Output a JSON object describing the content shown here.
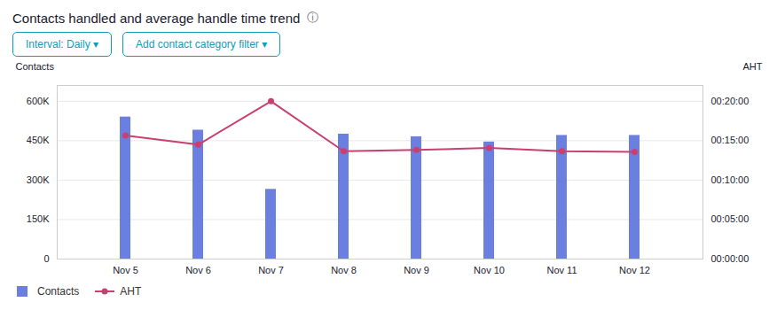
{
  "chart_data": {
    "type": "bar",
    "title": "Contacts handled and average handle time trend",
    "annotations": [
      {
        "text": "ⓘ"
      },
      {
        "text": "Interval: Daily  ▾",
        "color": "#0d9db5"
      },
      {
        "text": "Add contact category filter  ▾",
        "color": "#0d9db5"
      }
    ],
    "ylabel": "Contacts",
    "y2label": "AHT",
    "categories": [
      "Nov 5",
      "Nov 6",
      "Nov 7",
      "Nov 8",
      "Nov 9",
      "Nov 10",
      "Nov 11",
      "Nov 12"
    ],
    "series": [
      {
        "name": "Contacts",
        "type": "bar",
        "color": "#6b7fe0",
        "values": [
          540000,
          490000,
          265000,
          475000,
          465000,
          445000,
          470000,
          470000
        ]
      },
      {
        "name": "AHT",
        "type": "line",
        "color": "#c94070",
        "marker": "circle",
        "axis": "y2",
        "values": [
          940,
          870,
          1200,
          820,
          830,
          845,
          820,
          815
        ]
      }
    ],
    "ylim": [
      0,
      660000
    ],
    "yticks": [
      0,
      {
        "value": 150000,
        "label": "150K"
      },
      {
        "value": 300000,
        "label": "300K"
      },
      {
        "value": 450000,
        "label": "450K"
      },
      {
        "value": 600000,
        "label": "600K"
      }
    ],
    "y2lim": [
      0,
      1320
    ],
    "y2ticks": [
      {
        "value": 0,
        "label": "00:00:00"
      },
      {
        "value": 300,
        "label": "00:05:00"
      },
      {
        "value": 600,
        "label": "00:10:00"
      },
      {
        "value": 900,
        "label": "00:15:00"
      },
      {
        "value": 1200,
        "label": "00:20:00"
      }
    ],
    "grid": true,
    "legend": "bottom"
  }
}
